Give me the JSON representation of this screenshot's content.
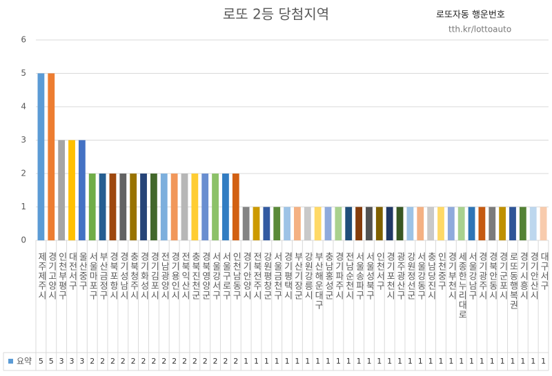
{
  "chart_data": {
    "type": "bar",
    "title": "로또 2등 당첨지역",
    "annotations": [
      "로또자동 행운번호",
      "tth.kr/lottoauto"
    ],
    "categories": [
      "제주제주시",
      "경기고양시",
      "인천부평구",
      "대전서구",
      "울산중구",
      "서울마포구",
      "부산금정구",
      "경북포항시",
      "경기성남시",
      "충북청주시",
      "경기화성시",
      "경기김포시",
      "전남광양시",
      "경기용인시",
      "전북익산시",
      "충북진천군",
      "경북영양군",
      "서울강서구",
      "서울구로구",
      "인천남동구",
      "경기안양시",
      "전북전주시",
      "강원평창군",
      "서울금천구",
      "경기평택시",
      "부산기장군",
      "강원강릉시",
      "부산해운대구",
      "충남홍성군",
      "경기파주시",
      "전남순천시",
      "서울송파구",
      "서울성북구",
      "인천서구",
      "경기포천시",
      "광주광산구",
      "강원정선군",
      "서울강동구",
      "충남당진시",
      "인천중구",
      "경기부천시",
      "세종한누리대로",
      "서울강남구",
      "경기광주시",
      "경북안동시",
      "경기군포시",
      "로또동행복권",
      "경기시흥시",
      "경기안산시",
      "대구서구"
    ],
    "series": [
      {
        "name": "요약",
        "color": "#5b9bd5",
        "values": [
          5,
          5,
          3,
          3,
          3,
          2,
          2,
          2,
          2,
          2,
          2,
          2,
          2,
          2,
          2,
          2,
          2,
          2,
          2,
          2,
          1,
          1,
          1,
          1,
          1,
          1,
          1,
          1,
          1,
          1,
          1,
          1,
          1,
          1,
          1,
          1,
          1,
          1,
          1,
          1,
          1,
          1,
          1,
          1,
          1,
          1,
          1,
          1,
          1,
          1
        ]
      }
    ],
    "point_colors": [
      "#5b9bd5",
      "#ed7d31",
      "#a5a5a5",
      "#ffc000",
      "#4472c4",
      "#70ad47",
      "#255e91",
      "#9e480e",
      "#636363",
      "#997300",
      "#264478",
      "#43682b",
      "#7cafdd",
      "#f1975a",
      "#b7b7b7",
      "#ffcd33",
      "#698ed0",
      "#8cc168",
      "#327dc2",
      "#d26012",
      "#848484",
      "#cc9a00",
      "#335aa1",
      "#5a8a39",
      "#9dc3e6",
      "#f4b183",
      "#c9c9c9",
      "#ffd966",
      "#8faadc",
      "#a9d18e",
      "#1f4e79",
      "#843c0c",
      "#525252",
      "#7f6000",
      "#203864",
      "#385723",
      "#9dc3e6",
      "#f4b183",
      "#c9c9c9",
      "#ffd966",
      "#8faadc",
      "#a9d18e",
      "#2e75b6",
      "#c55a11",
      "#7b7b7b",
      "#bf9000",
      "#2f5597",
      "#548235",
      "#bdd7ee",
      "#f8cbad"
    ],
    "ylim": [
      0,
      6
    ],
    "yticks": [
      0,
      1,
      2,
      3,
      4,
      5,
      6
    ],
    "grid": true,
    "data_table": true
  }
}
